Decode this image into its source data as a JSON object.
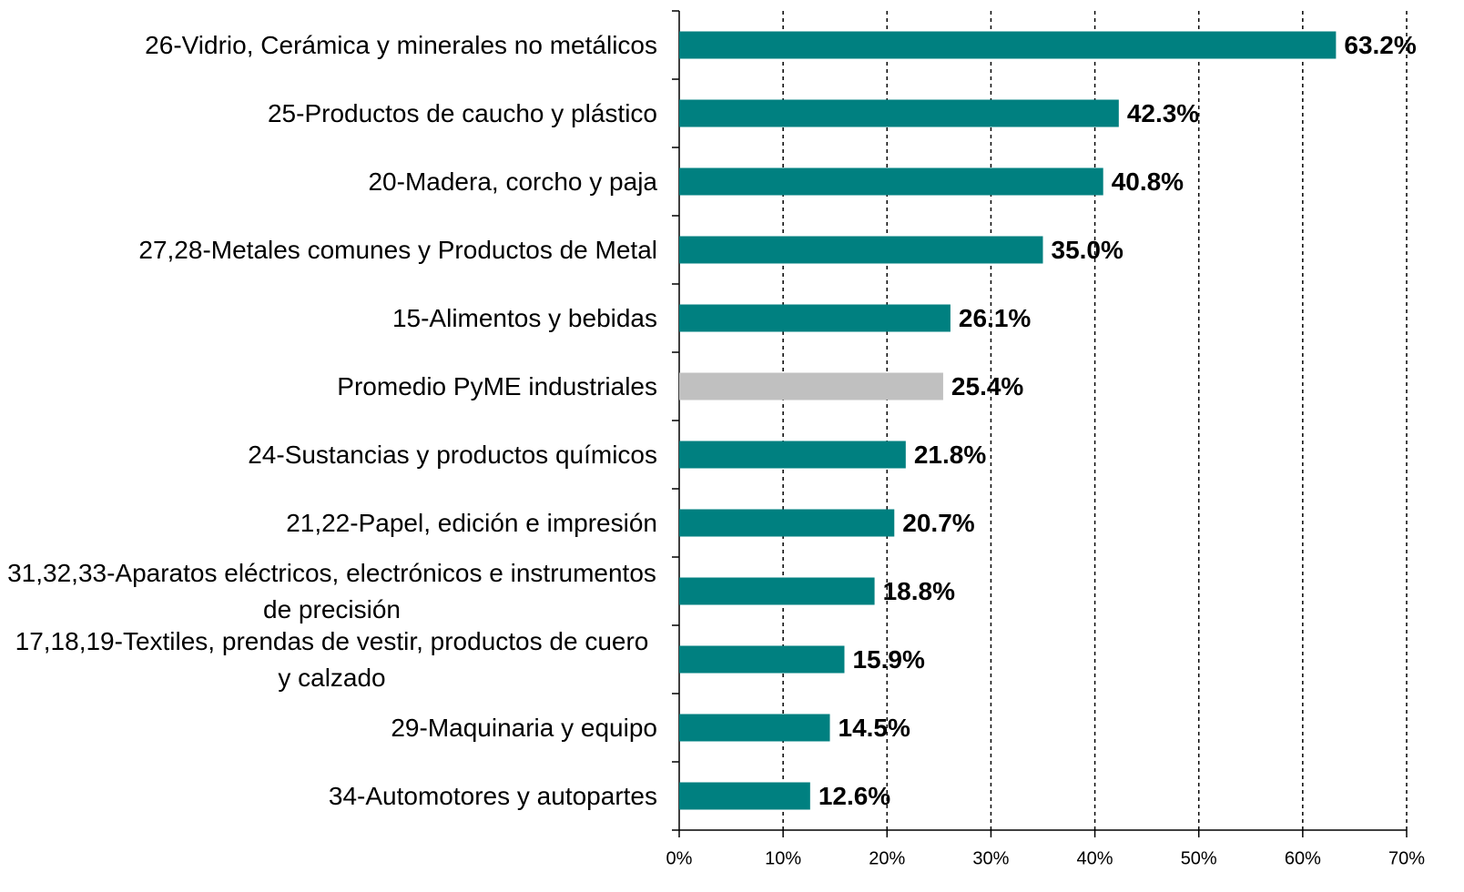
{
  "chart_data": {
    "type": "bar",
    "orientation": "horizontal",
    "categories": [
      "26-Vidrio, Cerámica y minerales no metálicos",
      "25-Productos de caucho y plástico",
      "20-Madera, corcho y paja",
      "27,28-Metales comunes y Productos de Metal",
      "15-Alimentos y bebidas",
      "Promedio PyME industriales",
      "24-Sustancias y productos químicos",
      "21,22-Papel, edición e impresión",
      "31,32,33-Aparatos eléctricos, electrónicos e instrumentos de precisión",
      "17,18,19-Textiles, prendas de vestir, productos de cuero y calzado",
      "29-Maquinaria y equipo",
      "34-Automotores y autopartes"
    ],
    "values": [
      63.2,
      42.3,
      40.8,
      35.0,
      26.1,
      25.4,
      21.8,
      20.7,
      18.8,
      15.9,
      14.5,
      12.6
    ],
    "value_labels": [
      "63.2%",
      "42.3%",
      "40.8%",
      "35.0%",
      "26.1%",
      "25.4%",
      "21.8%",
      "20.7%",
      "18.8%",
      "15.9%",
      "14.5%",
      "12.6%"
    ],
    "colors": [
      "#008080",
      "#008080",
      "#008080",
      "#008080",
      "#008080",
      "#c0c0c0",
      "#008080",
      "#008080",
      "#008080",
      "#008080",
      "#008080",
      "#008080"
    ],
    "xlim": [
      0,
      70
    ],
    "xticks": [
      {
        "value": 0,
        "label": "0%"
      },
      {
        "value": 10,
        "label": "10%"
      },
      {
        "value": 20,
        "label": "20%"
      },
      {
        "value": 30,
        "label": "30%"
      },
      {
        "value": 40,
        "label": "40%"
      },
      {
        "value": 50,
        "label": "50%"
      },
      {
        "value": 60,
        "label": "60%"
      },
      {
        "value": 70,
        "label": "70%"
      }
    ],
    "grid": true
  }
}
